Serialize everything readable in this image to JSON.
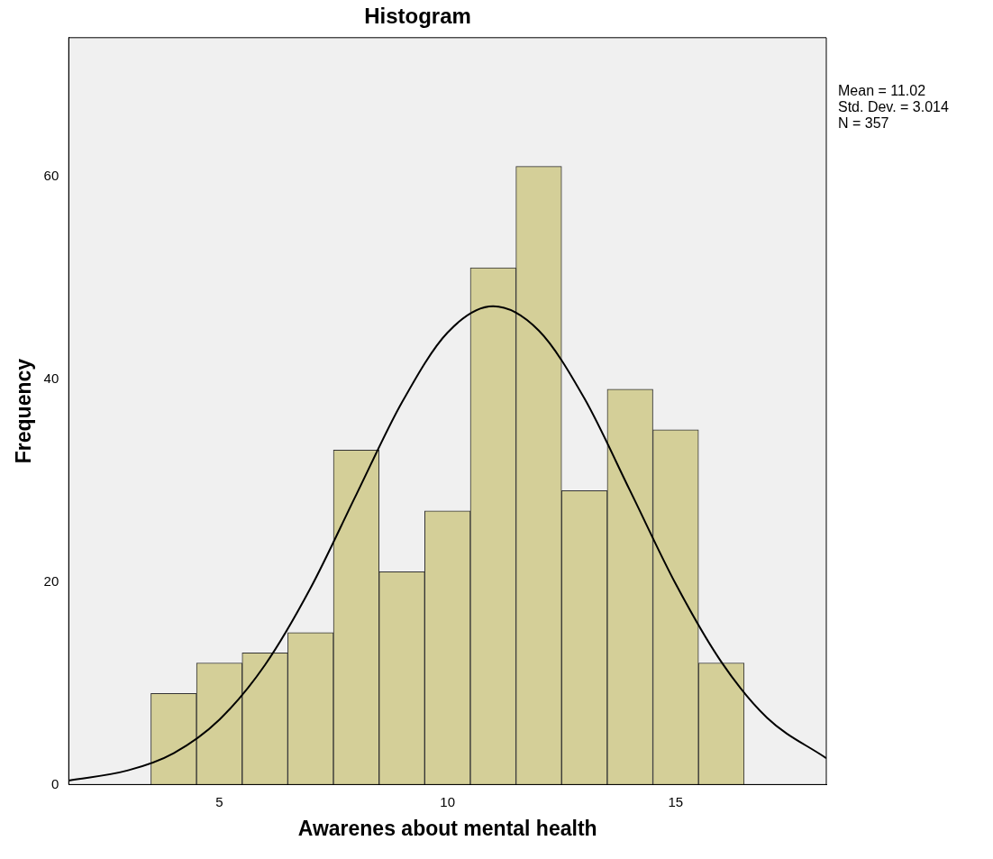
{
  "chart_data": {
    "type": "histogram",
    "title": "Histogram",
    "xlabel": "Awarenes about mental health",
    "ylabel": "Frequency",
    "bins": [
      3.5,
      4.5,
      5.5,
      6.5,
      7.5,
      8.5,
      9.5,
      10.5,
      11.5,
      12.5,
      13.5,
      14.5,
      15.5,
      16.5
    ],
    "values": [
      9,
      12,
      13,
      15,
      33,
      21,
      27,
      51,
      61,
      29,
      39,
      35,
      12
    ],
    "color": "#d4cf98",
    "series": [
      {
        "type": "line",
        "color": "#000000",
        "x": [
          1.7,
          3,
          4,
          5,
          6,
          7,
          8,
          9,
          10,
          11,
          12,
          13,
          14,
          15,
          16,
          17,
          18.3
        ],
        "values": [
          0.4,
          1.4,
          3.1,
          6.4,
          11.8,
          19.4,
          28.6,
          37.7,
          44.6,
          47.2,
          44.8,
          38.1,
          29.0,
          19.8,
          12.1,
          6.6,
          2.6
        ]
      }
    ],
    "xlim": [
      1.7,
      18.3
    ],
    "xticks": [
      5,
      10,
      15
    ],
    "ylim": [
      0,
      73.7
    ],
    "yticks": [
      0,
      20,
      40,
      60
    ],
    "grid": false,
    "legend": false,
    "marker": "none",
    "annotations": [
      "Mean = 11.02",
      "Std. Dev. = 3.014",
      "N = 357"
    ]
  }
}
